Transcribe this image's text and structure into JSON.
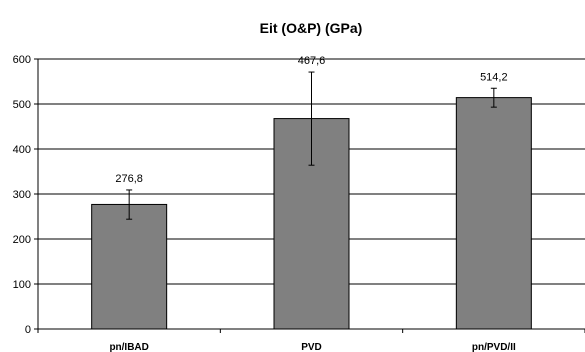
{
  "chart_data": {
    "type": "bar",
    "title": "Eit (O&P) (GPa)",
    "xlabel": "",
    "ylabel": "",
    "categories": [
      "pn/IBAD",
      "PVD",
      "pn/PVD/II"
    ],
    "values": [
      276.8,
      467.6,
      514.2
    ],
    "value_labels": [
      "276,8",
      "467,6",
      "514,2"
    ],
    "error_low": [
      244,
      364,
      493
    ],
    "error_high": [
      309,
      571,
      535
    ],
    "ylim": [
      0,
      600
    ],
    "yticks": [
      "0",
      "100",
      "200",
      "300",
      "400",
      "500",
      "600"
    ],
    "grid": true,
    "legend": "none",
    "bar_color": "#808080"
  }
}
